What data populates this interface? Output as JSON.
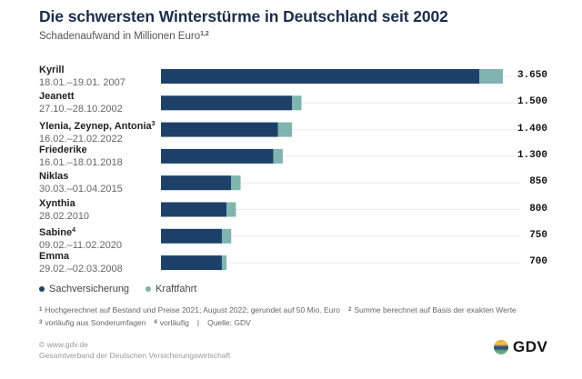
{
  "header": {
    "title": "Die schwersten Winterstürme in Deutschland seit 2002",
    "subtitle": "Schadenaufwand in Millionen Euro",
    "subtitle_sup": "1,2"
  },
  "chart_data": {
    "type": "bar",
    "orientation": "horizontal",
    "stacked": true,
    "title": "Die schwersten Winterstürme in Deutschland seit 2002",
    "subtitle": "Schadenaufwand in Millionen Euro",
    "xlabel": "",
    "ylabel": "",
    "xlim": [
      0,
      3650
    ],
    "grid": true,
    "legend_position": "bottom-left",
    "categories": [
      {
        "name": "Kyrill",
        "sup": "",
        "dates": "18.01.–19.01. 2007",
        "total_label": "3.650"
      },
      {
        "name": "Jeanett",
        "sup": "",
        "dates": "27.10.–28.10.2002",
        "total_label": "1.500"
      },
      {
        "name": "Ylenia, Zeynep, Antonia",
        "sup": "3",
        "dates": "16.02.–21.02.2022",
        "total_label": "1.400"
      },
      {
        "name": "Friederike",
        "sup": "",
        "dates": "16.01.–18.01.2018",
        "total_label": "1.300"
      },
      {
        "name": "Niklas",
        "sup": "",
        "dates": "30.03.–01.04.2015",
        "total_label": "850"
      },
      {
        "name": "Xynthia",
        "sup": "",
        "dates": "28.02.2010",
        "total_label": "800"
      },
      {
        "name": "Sabine",
        "sup": "4",
        "dates": "09.02.–11.02.2020",
        "total_label": "750"
      },
      {
        "name": "Emma",
        "sup": "",
        "dates": "29.02.–02.03.2008",
        "total_label": "700"
      }
    ],
    "totals": [
      3650,
      1500,
      1400,
      1300,
      850,
      800,
      750,
      700
    ],
    "series": [
      {
        "name": "Sachversicherung",
        "color": "#1d4068",
        "values": [
          3400,
          1400,
          1250,
          1200,
          750,
          700,
          650,
          650
        ]
      },
      {
        "name": "Kraftfahrt",
        "color": "#7fb4b0",
        "values": [
          250,
          100,
          150,
          100,
          100,
          100,
          100,
          50
        ]
      }
    ]
  },
  "legend": [
    {
      "label": "Sachversicherung",
      "color": "#1d4068"
    },
    {
      "label": "Kraftfahrt",
      "color": "#7fb4b0"
    }
  ],
  "footnotes": {
    "fn1_num": "1",
    "fn1": "Hochgerechnet auf Bestand und Preise 2021; August 2022; gerundet auf 50 Mio. Euro",
    "fn2_num": "2",
    "fn2": "Summe berechnet auf Basis der exakten Werte",
    "fn3_num": "3",
    "fn3": "vorläufig aus Sonderumfagen",
    "fn4_num": "4",
    "fn4": "vorläufig",
    "separator": "|",
    "source": "Quelle: GDV"
  },
  "credits": {
    "url": "© www.gdv.de",
    "org": "Gesamtverband der Deutschen Versicherungswirtschaft"
  },
  "logo": {
    "text": "GDV"
  }
}
